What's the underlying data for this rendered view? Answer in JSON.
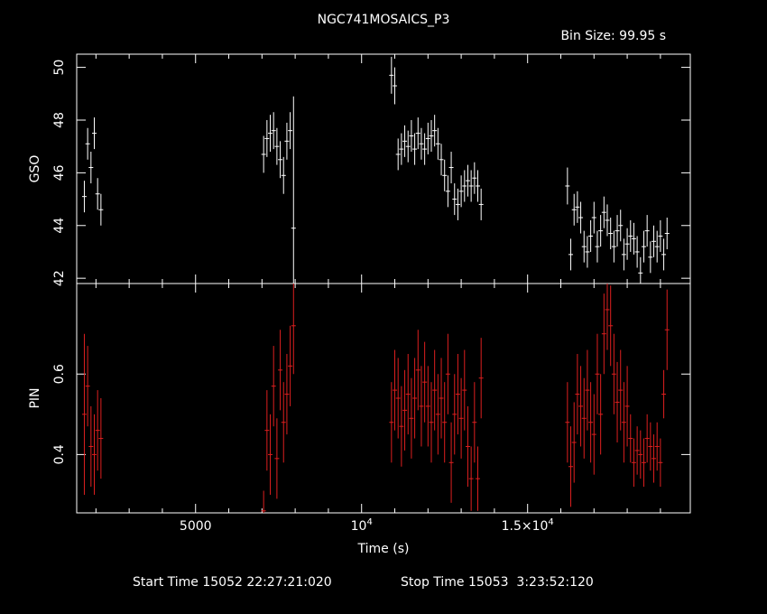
{
  "chart_data": [
    {
      "type": "scatter",
      "title": "NGC741MOSAICS_P3",
      "subtitle": "Bin Size: 99.95 s",
      "ylabel": "GSO",
      "xlim": [
        1420,
        19900
      ],
      "ylim": [
        41.8,
        50.5
      ],
      "yticks": [
        42,
        44,
        46,
        48,
        50
      ],
      "color": "#ffffff",
      "series": [
        {
          "x": [
            1650,
            1750,
            1850,
            1950,
            2050,
            2150,
            7050,
            7150,
            7250,
            7350,
            7450,
            7550,
            7650,
            7750,
            7850,
            7950,
            10900,
            11000,
            11100,
            11200,
            11300,
            11400,
            11500,
            11600,
            11700,
            11800,
            11900,
            12000,
            12100,
            12200,
            12300,
            12400,
            12500,
            12600,
            12700,
            12800,
            12900,
            13000,
            13100,
            13200,
            13300,
            13400,
            13500,
            13600,
            16200,
            16300,
            16400,
            16500,
            16600,
            16700,
            16800,
            16900,
            17000,
            17100,
            17200,
            17300,
            17400,
            17500,
            17600,
            17700,
            17800,
            17900,
            18000,
            18100,
            18200,
            18300,
            18400,
            18500,
            18600,
            18700,
            18800,
            18900,
            19000,
            19100,
            19200
          ],
          "y": [
            45.1,
            47.1,
            46.2,
            47.5,
            45.2,
            44.6,
            46.7,
            47.3,
            47.5,
            47.6,
            47.0,
            46.5,
            45.9,
            47.2,
            47.6,
            43.9,
            49.7,
            49.3,
            46.7,
            46.9,
            47.2,
            47.0,
            47.4,
            46.9,
            47.5,
            47.1,
            46.9,
            47.3,
            47.4,
            47.6,
            47.1,
            46.5,
            45.9,
            45.3,
            46.2,
            45.0,
            44.8,
            45.3,
            45.5,
            45.7,
            45.5,
            45.8,
            45.5,
            44.8,
            45.5,
            42.9,
            44.6,
            44.7,
            44.3,
            43.2,
            43.0,
            43.6,
            44.3,
            43.2,
            43.8,
            44.5,
            44.2,
            43.7,
            43.2,
            43.8,
            44.0,
            42.9,
            43.3,
            43.6,
            43.5,
            43.0,
            42.2,
            43.2,
            43.8,
            42.8,
            43.4,
            43.2,
            43.6,
            42.9,
            43.7
          ],
          "err": [
            0.6,
            0.6,
            0.6,
            0.6,
            0.6,
            0.6,
            0.7,
            0.7,
            0.7,
            0.7,
            0.7,
            0.7,
            0.7,
            0.7,
            0.7,
            5.0,
            0.7,
            0.7,
            0.6,
            0.6,
            0.6,
            0.6,
            0.6,
            0.6,
            0.6,
            0.6,
            0.6,
            0.6,
            0.6,
            0.6,
            0.6,
            0.6,
            0.6,
            0.6,
            0.6,
            0.6,
            0.6,
            0.6,
            0.6,
            0.6,
            0.6,
            0.6,
            0.6,
            0.6,
            0.7,
            0.6,
            0.6,
            0.6,
            0.6,
            0.6,
            0.6,
            0.6,
            0.6,
            0.6,
            0.6,
            0.6,
            0.6,
            0.6,
            0.6,
            0.6,
            0.6,
            0.6,
            0.6,
            0.6,
            0.6,
            0.6,
            0.6,
            0.6,
            0.6,
            0.6,
            0.6,
            0.6,
            0.6,
            0.6,
            0.6
          ]
        }
      ]
    },
    {
      "type": "scatter",
      "ylabel": "PIN",
      "xlabel": "Time (s)",
      "xlim": [
        1420,
        19900
      ],
      "ylim": [
        0.255,
        0.825
      ],
      "yticks": [
        0.4,
        0.6
      ],
      "xticks": [
        {
          "value": 5000,
          "label": "5000"
        },
        {
          "value": 10000,
          "label": "10",
          "sup": "4"
        },
        {
          "value": 15000,
          "label": "1.5×10",
          "sup": "4"
        }
      ],
      "color": "#dd1f1f",
      "series": [
        {
          "x": [
            1650,
            1750,
            1850,
            1950,
            2050,
            2150,
            7050,
            7150,
            7250,
            7350,
            7450,
            7550,
            7650,
            7750,
            7850,
            7950,
            10900,
            11000,
            11100,
            11200,
            11300,
            11400,
            11500,
            11600,
            11700,
            11800,
            11900,
            12000,
            12100,
            12200,
            12300,
            12400,
            12500,
            12600,
            12700,
            12800,
            12900,
            13000,
            13100,
            13200,
            13300,
            13400,
            13500,
            13600,
            16200,
            16300,
            16400,
            16500,
            16600,
            16700,
            16800,
            16900,
            17000,
            17100,
            17200,
            17300,
            17400,
            17500,
            17600,
            17700,
            17800,
            17900,
            18000,
            18100,
            18200,
            18300,
            18400,
            18500,
            18600,
            18700,
            18800,
            18900,
            19000,
            19100,
            19200
          ],
          "y": [
            0.5,
            0.57,
            0.42,
            0.4,
            0.46,
            0.44,
            0.26,
            0.46,
            0.4,
            0.57,
            0.39,
            0.61,
            0.48,
            0.55,
            0.62,
            0.72,
            0.48,
            0.56,
            0.54,
            0.47,
            0.51,
            0.55,
            0.49,
            0.54,
            0.61,
            0.52,
            0.58,
            0.52,
            0.48,
            0.56,
            0.5,
            0.54,
            0.48,
            0.6,
            0.38,
            0.5,
            0.55,
            0.49,
            0.56,
            0.42,
            0.34,
            0.48,
            0.34,
            0.59,
            0.48,
            0.37,
            0.43,
            0.55,
            0.52,
            0.49,
            0.56,
            0.48,
            0.45,
            0.6,
            0.5,
            0.7,
            0.76,
            0.72,
            0.6,
            0.53,
            0.56,
            0.48,
            0.52,
            0.44,
            0.38,
            0.41,
            0.4,
            0.38,
            0.44,
            0.42,
            0.39,
            0.42,
            0.38,
            0.55,
            0.71
          ],
          "err": [
            0.2,
            0.1,
            0.1,
            0.1,
            0.1,
            0.1,
            0.05,
            0.1,
            0.1,
            0.1,
            0.1,
            0.1,
            0.1,
            0.1,
            0.1,
            0.12,
            0.1,
            0.1,
            0.1,
            0.1,
            0.1,
            0.1,
            0.1,
            0.1,
            0.1,
            0.1,
            0.1,
            0.1,
            0.1,
            0.1,
            0.1,
            0.1,
            0.1,
            0.1,
            0.1,
            0.1,
            0.1,
            0.1,
            0.1,
            0.1,
            0.08,
            0.1,
            0.08,
            0.1,
            0.1,
            0.1,
            0.1,
            0.1,
            0.1,
            0.1,
            0.1,
            0.1,
            0.1,
            0.1,
            0.1,
            0.1,
            0.1,
            0.1,
            0.1,
            0.1,
            0.1,
            0.1,
            0.1,
            0.06,
            0.06,
            0.06,
            0.06,
            0.06,
            0.06,
            0.06,
            0.06,
            0.06,
            0.06,
            0.06,
            0.1
          ]
        }
      ]
    }
  ],
  "footer": {
    "start": "Start Time 15052 22:27:21:020",
    "stop": "Stop Time 15053  3:23:52:120"
  }
}
